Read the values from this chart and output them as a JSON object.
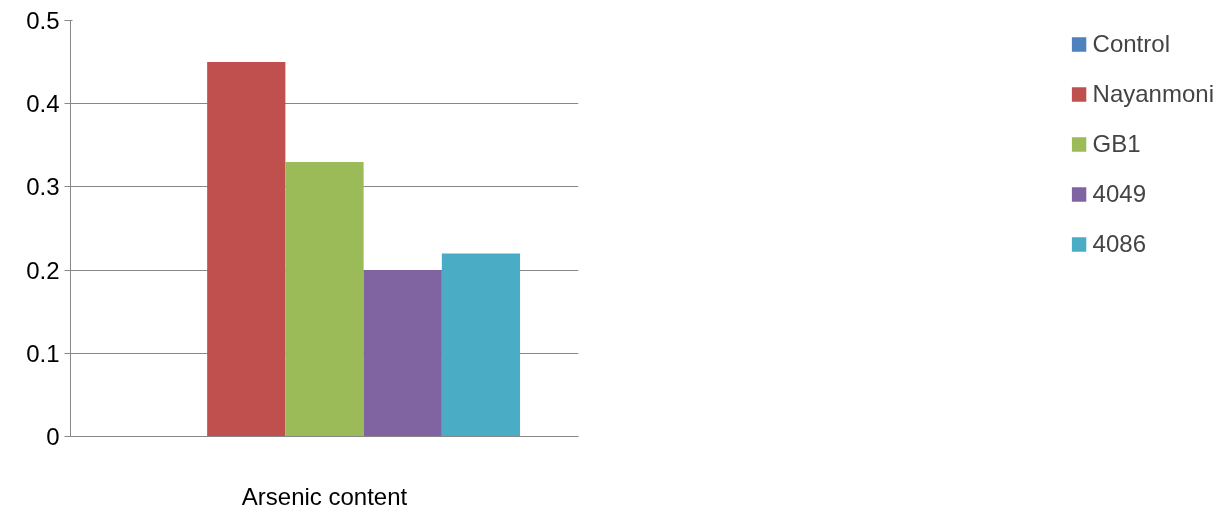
{
  "chart_data": {
    "type": "bar",
    "categories": [
      "Arsenic content"
    ],
    "series": [
      {
        "name": "Control",
        "color": "#4f81bd",
        "values": [
          0
        ]
      },
      {
        "name": "Nayanmoni",
        "color": "#c0504d",
        "values": [
          0.45
        ]
      },
      {
        "name": "GB1",
        "color": "#9bbb59",
        "values": [
          0.33
        ]
      },
      {
        "name": "4049",
        "color": "#8064a2",
        "values": [
          0.2
        ]
      },
      {
        "name": "4086",
        "color": "#4bacc6",
        "values": [
          0.22
        ]
      }
    ],
    "ylim": [
      0,
      0.5
    ],
    "yticks": [
      0,
      0.1,
      0.2,
      0.3,
      0.4,
      0.5
    ],
    "grid": "y",
    "legend": "right"
  }
}
